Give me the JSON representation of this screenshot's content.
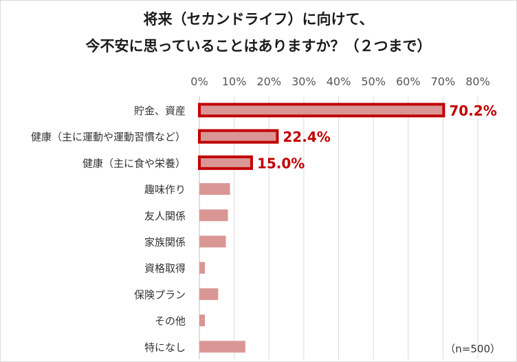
{
  "chart_data": {
    "type": "bar",
    "orientation": "horizontal",
    "title_line1": "将来（セカンドライフ）に向けて、",
    "title_line2": "今不安に思っていることはありますか？（２つまで）",
    "categories": [
      "貯金、資産",
      "健康（主に運動や運動習慣など）",
      "健康（主に食や栄養）",
      "趣味作り",
      "友人関係",
      "家族関係",
      "資格取得",
      "保険プラン",
      "その他",
      "特になし"
    ],
    "values": [
      70.2,
      22.4,
      15.0,
      8.8,
      8.2,
      7.6,
      1.6,
      5.4,
      1.6,
      13.2
    ],
    "highlighted": [
      0,
      1,
      2
    ],
    "value_labels": [
      "70.2%",
      "22.4%",
      "15.0%",
      "",
      "",
      "",
      "",
      "",
      "",
      ""
    ],
    "x_ticks": [
      "0%",
      "10%",
      "20%",
      "30%",
      "40%",
      "50%",
      "60%",
      "70%",
      "80%"
    ],
    "xlim": [
      0,
      80
    ],
    "grid": true,
    "note": "（n=500）",
    "colors": {
      "bar": "#d99694",
      "highlight_border": "#c00000",
      "label": "#c00000",
      "grid": "#d9d9d9"
    }
  }
}
